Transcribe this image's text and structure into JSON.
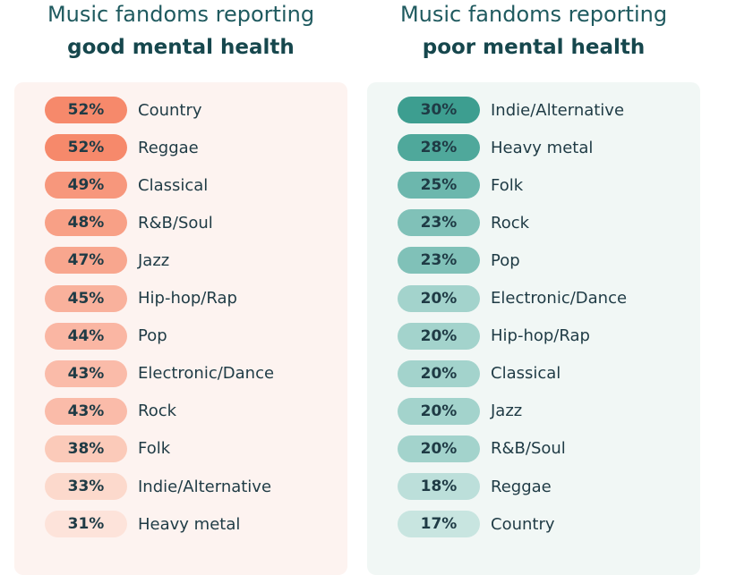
{
  "chart_data": [
    {
      "type": "table",
      "title_line1": "Music fandoms reporting",
      "title_line2": "good mental health",
      "categories": [
        "Country",
        "Reggae",
        "Classical",
        "R&B/Soul",
        "Jazz",
        "Hip-hop/Rap",
        "Pop",
        "Electronic/Dance",
        "Rock",
        "Folk",
        "Indie/Alternative",
        "Heavy metal"
      ],
      "values": [
        52,
        52,
        49,
        48,
        47,
        45,
        44,
        43,
        43,
        38,
        33,
        31
      ],
      "labels": [
        "52%",
        "52%",
        "49%",
        "48%",
        "47%",
        "45%",
        "44%",
        "43%",
        "43%",
        "38%",
        "33%",
        "31%"
      ],
      "colors": [
        "#f6896b",
        "#f6896b",
        "#f7977c",
        "#f8a086",
        "#f8a68e",
        "#f9b19c",
        "#fab6a3",
        "#fabba9",
        "#fabba9",
        "#fbcab9",
        "#fcd9cc",
        "#fde3da"
      ]
    },
    {
      "type": "table",
      "title_line1": "Music fandoms reporting",
      "title_line2": "poor mental health",
      "categories": [
        "Indie/Alternative",
        "Heavy metal",
        "Folk",
        "Rock",
        "Pop",
        "Electronic/Dance",
        "Hip-hop/Rap",
        "Classical",
        "Jazz",
        "R&B/Soul",
        "Reggae",
        "Country"
      ],
      "values": [
        30,
        28,
        25,
        23,
        23,
        20,
        20,
        20,
        20,
        20,
        18,
        17
      ],
      "labels": [
        "30%",
        "28%",
        "25%",
        "23%",
        "23%",
        "20%",
        "20%",
        "20%",
        "20%",
        "20%",
        "18%",
        "17%"
      ],
      "colors": [
        "#3d9e90",
        "#4fa89b",
        "#6cb7ad",
        "#80c1b8",
        "#80c1b8",
        "#a3d3cc",
        "#a3d3cc",
        "#a3d3cc",
        "#a3d3cc",
        "#a3d3cc",
        "#bcdfda",
        "#c8e5e0"
      ]
    }
  ]
}
